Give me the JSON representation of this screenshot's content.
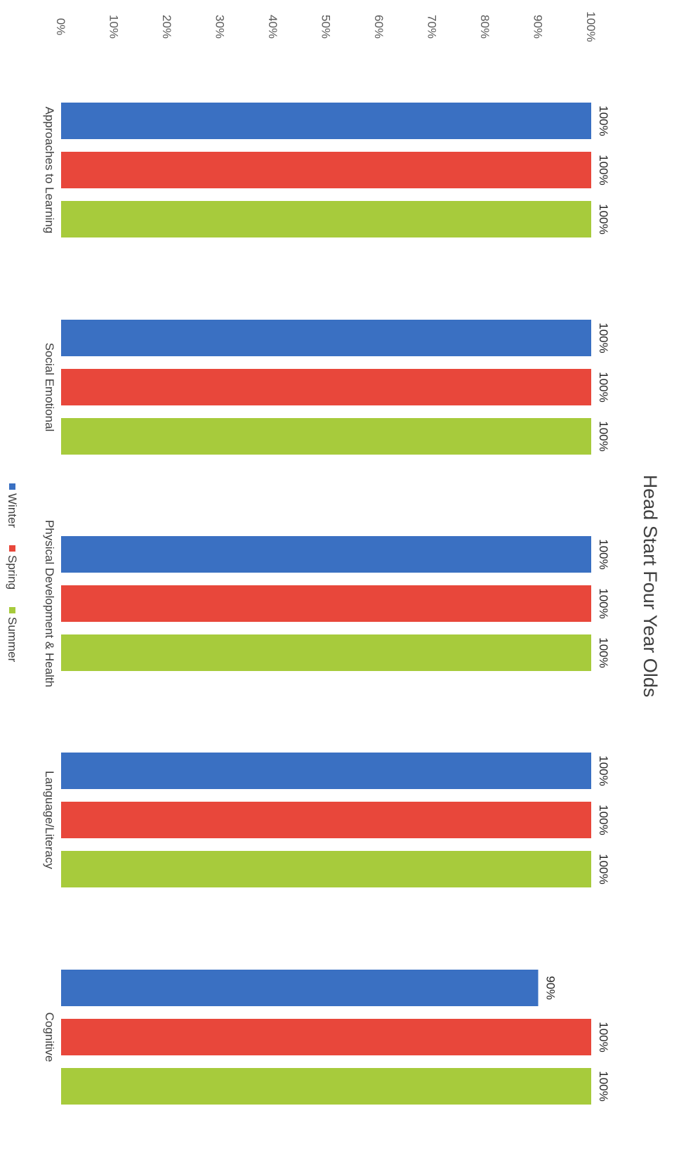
{
  "chart_data": {
    "type": "bar",
    "orientation": "horizontal",
    "title": "Head Start Four Year Olds",
    "xlabel": "",
    "ylabel": "",
    "categories": [
      "Approaches to Learning",
      "Social Emotional",
      "Physical Development & Health",
      "Language/Literacy",
      "Cognitive"
    ],
    "series": [
      {
        "name": "Winter",
        "values": [
          100,
          100,
          100,
          100,
          90
        ],
        "labels": [
          "100%",
          "100%",
          "100%",
          "100%",
          "90%"
        ],
        "color": "#3a70c2"
      },
      {
        "name": "Spring",
        "values": [
          100,
          100,
          100,
          100,
          100
        ],
        "labels": [
          "100%",
          "100%",
          "100%",
          "100%",
          "100%"
        ],
        "color": "#e8473b"
      },
      {
        "name": "Summer",
        "values": [
          100,
          100,
          100,
          100,
          100
        ],
        "labels": [
          "100%",
          "100%",
          "100%",
          "100%",
          "100%"
        ],
        "color": "#a7cb3c"
      }
    ],
    "value_axis": {
      "range": [
        0,
        100
      ],
      "ticks": [
        0,
        10,
        20,
        30,
        40,
        50,
        60,
        70,
        80,
        90,
        100
      ],
      "tick_labels": [
        "0%",
        "10%",
        "20%",
        "30%",
        "40%",
        "50%",
        "60%",
        "70%",
        "80%",
        "90%",
        "100%"
      ]
    },
    "grid": false,
    "legend": "bottom",
    "image_rotation": "90deg clockwise"
  }
}
